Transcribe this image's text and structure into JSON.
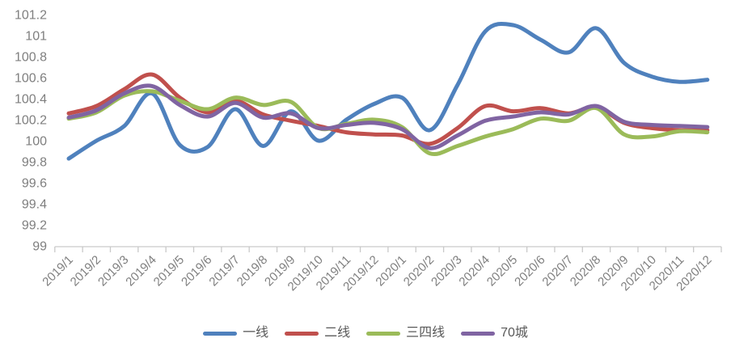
{
  "chart_data": {
    "type": "line",
    "title": "",
    "smooth": true,
    "grid": false,
    "legend_position": "bottom",
    "x_categories": [
      "2019/1",
      "2019/2",
      "2019/3",
      "2019/4",
      "2019/5",
      "2019/6",
      "2019/7",
      "2019/8",
      "2019/9",
      "2019/10",
      "2019/11",
      "2019/12",
      "2020/1",
      "2020/2",
      "2020/3",
      "2020/4",
      "2020/5",
      "2020/6",
      "2020/7",
      "2020/8",
      "2020/9",
      "2020/10",
      "2020/11",
      "2020/12"
    ],
    "y_axis": {
      "min": 99,
      "max": 101.2,
      "step": 0.2,
      "tick_labels": [
        "99",
        "99.2",
        "99.4",
        "99.6",
        "99.8",
        "100",
        "100.2",
        "100.4",
        "100.6",
        "100.8",
        "101",
        "101.2"
      ]
    },
    "series": [
      {
        "name": "一线",
        "color": "#4F81BD",
        "values": [
          99.83,
          100.0,
          100.14,
          100.45,
          99.96,
          99.94,
          100.3,
          99.95,
          100.28,
          100.0,
          100.2,
          100.35,
          100.41,
          100.1,
          100.53,
          101.04,
          101.1,
          100.96,
          100.84,
          101.07,
          100.74,
          100.61,
          100.56,
          100.58
        ]
      },
      {
        "name": "二线",
        "color": "#C0504D",
        "values": [
          100.26,
          100.33,
          100.49,
          100.63,
          100.41,
          100.27,
          100.38,
          100.25,
          100.19,
          100.14,
          100.08,
          100.06,
          100.05,
          99.97,
          100.12,
          100.33,
          100.28,
          100.31,
          100.26,
          100.32,
          100.17,
          100.12,
          100.1,
          100.1
        ]
      },
      {
        "name": "三四线",
        "color": "#9BBB59",
        "values": [
          100.21,
          100.27,
          100.43,
          100.47,
          100.38,
          100.3,
          100.41,
          100.34,
          100.37,
          100.12,
          100.16,
          100.2,
          100.13,
          99.88,
          99.95,
          100.04,
          100.11,
          100.21,
          100.19,
          100.31,
          100.06,
          100.04,
          100.09,
          100.08
        ]
      },
      {
        "name": "70城",
        "color": "#8064A2",
        "values": [
          100.22,
          100.29,
          100.45,
          100.52,
          100.34,
          100.23,
          100.36,
          100.22,
          100.26,
          100.12,
          100.15,
          100.17,
          100.11,
          99.93,
          100.05,
          100.19,
          100.23,
          100.27,
          100.25,
          100.33,
          100.18,
          100.15,
          100.14,
          100.13
        ]
      }
    ],
    "colors": {
      "axis_line": "#c9c9c9",
      "tick_mark": "#c9c9c9",
      "axis_text": "#7f7f7f",
      "legend_text": "#595959",
      "background": "#ffffff"
    }
  }
}
